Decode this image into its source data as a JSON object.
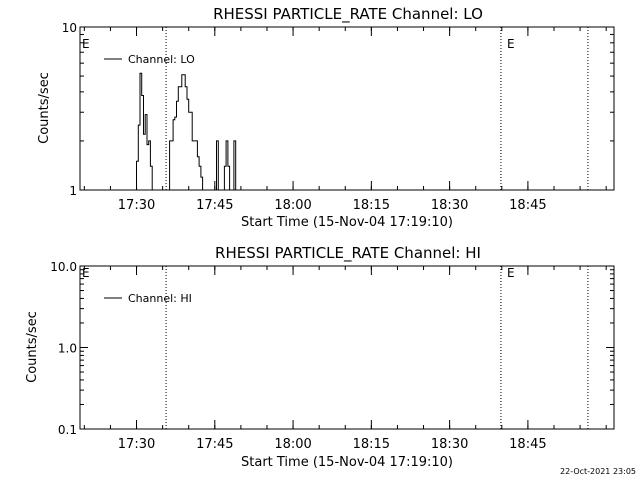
{
  "footer_timestamp": "22-Oct-2021 23:05",
  "colors": {
    "background": "#ffffff",
    "ink": "#000000"
  },
  "chart_data": [
    {
      "type": "line",
      "title": "RHESSI PARTICLE_RATE Channel: LO",
      "xlabel": "Start Time (15-Nov-04 17:19:10)",
      "ylabel": "Counts/sec",
      "y_scale": "log",
      "ylim": [
        1,
        10
      ],
      "y_ticks": [
        {
          "value": 1,
          "label": "1"
        },
        {
          "value": 10,
          "label": "10"
        }
      ],
      "xlim": [
        "17:19:10",
        "19:01:30"
      ],
      "x_ticks": [
        "17:30",
        "17:45",
        "18:00",
        "18:15",
        "18:30",
        "18:45"
      ],
      "grid": false,
      "legend_position": "top-left",
      "legend": [
        "Channel: LO"
      ],
      "event_lines": [
        {
          "x": "17:35:40",
          "label": ""
        },
        {
          "x": "18:39:50",
          "label": "E"
        },
        {
          "x": "18:56:30",
          "label": ""
        }
      ],
      "corner_marker": "E",
      "series": [
        {
          "name": "Channel: LO",
          "x": [
            "17:29:40",
            "17:30:00",
            "17:30:20",
            "17:30:40",
            "17:31:00",
            "17:31:20",
            "17:31:40",
            "17:32:00",
            "17:32:20",
            "17:32:40",
            "17:33:00",
            "17:36:00",
            "17:36:20",
            "17:36:40",
            "17:37:00",
            "17:37:20",
            "17:37:40",
            "17:38:00",
            "17:38:20",
            "17:38:40",
            "17:39:00",
            "17:39:20",
            "17:39:40",
            "17:40:00",
            "17:40:20",
            "17:40:40",
            "17:41:00",
            "17:41:20",
            "17:41:40",
            "17:42:00",
            "17:42:20",
            "17:42:40",
            "17:45:00",
            "17:45:20",
            "17:45:40",
            "17:46:30",
            "17:46:50",
            "17:47:10",
            "17:47:30",
            "17:47:50",
            "17:48:20",
            "17:48:40",
            "17:49:00"
          ],
          "y": [
            1,
            1.5,
            2.5,
            5.2,
            3.8,
            2.2,
            2.9,
            1.9,
            2,
            1.4,
            1,
            1,
            2,
            2,
            2.7,
            2.8,
            3.5,
            4.3,
            4.3,
            5.1,
            5.1,
            4.3,
            3.6,
            3,
            3,
            2,
            2,
            2,
            1.6,
            1.4,
            1.2,
            1,
            1,
            2,
            1,
            1,
            1.4,
            2,
            1.4,
            1,
            1,
            2,
            1
          ]
        }
      ]
    },
    {
      "type": "line",
      "title": "RHESSI PARTICLE_RATE Channel: HI",
      "xlabel": "Start Time (15-Nov-04 17:19:10)",
      "ylabel": "Counts/sec",
      "y_scale": "log",
      "ylim": [
        0.1,
        10
      ],
      "y_ticks": [
        {
          "value": 0.1,
          "label": "0.1"
        },
        {
          "value": 1,
          "label": "1.0"
        },
        {
          "value": 10,
          "label": "10.0"
        }
      ],
      "xlim": [
        "17:19:10",
        "19:01:30"
      ],
      "x_ticks": [
        "17:30",
        "17:45",
        "18:00",
        "18:15",
        "18:30",
        "18:45"
      ],
      "grid": false,
      "legend_position": "top-left",
      "legend": [
        "Channel: HI"
      ],
      "event_lines": [
        {
          "x": "17:35:40",
          "label": ""
        },
        {
          "x": "18:39:50",
          "label": "E"
        },
        {
          "x": "18:56:30",
          "label": ""
        }
      ],
      "corner_marker": "E",
      "series": [
        {
          "name": "Channel: HI",
          "x": [],
          "y": []
        }
      ]
    }
  ]
}
